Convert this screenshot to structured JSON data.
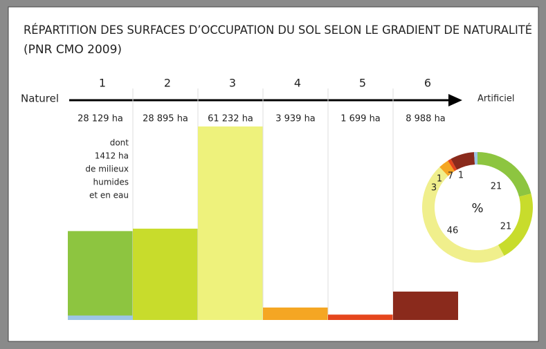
{
  "chart_data": [
    {
      "type": "bar",
      "title": "RÉPARTITION DES SURFACES D’OCCUPATION DU SOL SELON LE GRADIENT DE NATURALITÉ",
      "subtitle": "(PNR CMO 2009)",
      "axis_start_label": "Naturel",
      "axis_end_label": "Artificiel",
      "categories": [
        "1",
        "2",
        "3",
        "4",
        "5",
        "6"
      ],
      "values": [
        28129,
        28895,
        61232,
        3939,
        1699,
        8988
      ],
      "value_labels": [
        "28 129 ha",
        "28 895 ha",
        "61 232 ha",
        "3 939 ha",
        "1 699 ha",
        "8 988 ha"
      ],
      "colors": [
        "#8dc540",
        "#c8dc2c",
        "#eef27c",
        "#f5a623",
        "#e5461d",
        "#8a2a1c"
      ],
      "wetland": {
        "value": 1412,
        "label": "1412 ha",
        "color": "#9dc6e6",
        "before": "dont",
        "after": [
          "de milieux",
          "humides",
          "et en eau"
        ]
      }
    },
    {
      "type": "pie",
      "label": "%",
      "values": [
        21,
        21,
        46,
        3,
        1,
        7,
        1
      ],
      "colors": [
        "#8dc540",
        "#c8dc2c",
        "#f0ef8c",
        "#f5a623",
        "#e5461d",
        "#8a2a1c",
        "#9dc6e6"
      ]
    }
  ]
}
